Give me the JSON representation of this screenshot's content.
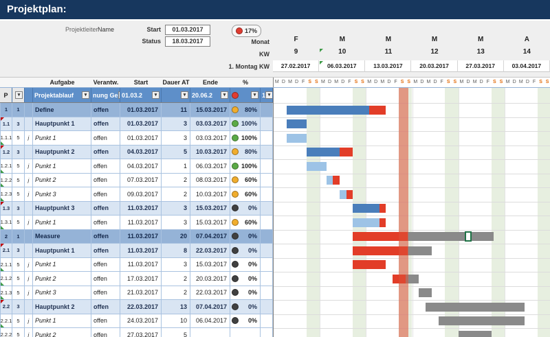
{
  "title": "Projektplan:",
  "header": {
    "projektleiter_label": "Projektleiter",
    "projektleiter_value": "Name",
    "start_label": "Start",
    "start_value": "01.03.2017",
    "status_label": "Status",
    "status_value": "18.03.2017",
    "progress_pct": "17%",
    "monat_label": "Monat",
    "kw_label": "KW",
    "montag_label": "1. Montag KW"
  },
  "timeline": {
    "months": [
      "F",
      "M",
      "M",
      "M",
      "M",
      "A"
    ],
    "kws": [
      "9",
      "10",
      "11",
      "12",
      "13",
      "14"
    ],
    "week_dates": [
      "27.02.2017",
      "06.03.2017",
      "13.03.2017",
      "20.03.2017",
      "27.03.2017",
      "03.04.2017"
    ],
    "day_letters": [
      "M",
      "D",
      "M",
      "D",
      "F",
      "S",
      "S"
    ],
    "today_offset_days": 19,
    "today_span_days": 1.4
  },
  "table": {
    "header_cells": [
      "",
      "",
      "",
      "Aufgabe",
      "Verantw.",
      "Start",
      "Dauer AT",
      "Ende",
      "%",
      ""
    ],
    "filter": {
      "p": "P",
      "aufgabe": "Projektablauf",
      "verantw": "nung Ge",
      "start": "01.03.2",
      "ende": "20.06.2",
      "last": "1"
    },
    "rows": [
      {
        "p": "1",
        "num": "1",
        "j": "",
        "level": 1,
        "aufgabe": "Define",
        "verantw": "offen",
        "start": "01.03.2017",
        "dauer": "11",
        "ende": "15.03.2017",
        "pct": "80%",
        "dot": "yellow",
        "bar": {
          "s": 2,
          "segs": [
            [
              "blue",
              12.5
            ],
            [
              "red",
              2.5
            ]
          ]
        }
      },
      {
        "p": "1.1",
        "num": "3",
        "j": "",
        "level": 2,
        "aufgabe": "Hauptpunkt 1",
        "verantw": "offen",
        "start": "01.03.2017",
        "dauer": "3",
        "ende": "03.03.2017",
        "pct": "100%",
        "dot": "green",
        "bar": {
          "s": 2,
          "segs": [
            [
              "blue",
              3
            ]
          ]
        }
      },
      {
        "p": "1.1.1",
        "num": "5",
        "j": "j",
        "level": 3,
        "aufgabe": "Punkt 1",
        "verantw": "offen",
        "start": "01.03.2017",
        "dauer": "3",
        "ende": "03.03.2017",
        "pct": "100%",
        "dot": "green",
        "bar": {
          "s": 2,
          "segs": [
            [
              "lightblue",
              3
            ]
          ]
        }
      },
      {
        "p": "1.2",
        "num": "3",
        "j": "",
        "level": 2,
        "aufgabe": "Hauptpunkt 2",
        "verantw": "offen",
        "start": "04.03.2017",
        "dauer": "5",
        "ende": "10.03.2017",
        "pct": "80%",
        "dot": "yellow",
        "bar": {
          "s": 5,
          "segs": [
            [
              "blue",
              5
            ],
            [
              "red",
              2
            ]
          ]
        }
      },
      {
        "p": "1.2.1",
        "num": "5",
        "j": "j",
        "level": 3,
        "aufgabe": "Punkt 1",
        "verantw": "offen",
        "start": "04.03.2017",
        "dauer": "1",
        "ende": "06.03.2017",
        "pct": "100%",
        "dot": "green",
        "bar": {
          "s": 5,
          "segs": [
            [
              "lightblue",
              3
            ]
          ]
        }
      },
      {
        "p": "1.2.2",
        "num": "5",
        "j": "j",
        "level": 3,
        "aufgabe": "Punkt 2",
        "verantw": "offen",
        "start": "07.03.2017",
        "dauer": "2",
        "ende": "08.03.2017",
        "pct": "60%",
        "dot": "yellow",
        "bar": {
          "s": 8,
          "segs": [
            [
              "lightblue",
              1
            ],
            [
              "red",
              1
            ]
          ]
        }
      },
      {
        "p": "1.2.3",
        "num": "5",
        "j": "j",
        "level": 3,
        "aufgabe": "Punkt 3",
        "verantw": "offen",
        "start": "09.03.2017",
        "dauer": "2",
        "ende": "10.03.2017",
        "pct": "60%",
        "dot": "yellow",
        "bar": {
          "s": 10,
          "segs": [
            [
              "lightblue",
              1
            ],
            [
              "red",
              1
            ]
          ]
        }
      },
      {
        "p": "1.3",
        "num": "3",
        "j": "",
        "level": 2,
        "aufgabe": "Hauptpunkt 3",
        "verantw": "offen",
        "start": "11.03.2017",
        "dauer": "3",
        "ende": "15.03.2017",
        "pct": "0%",
        "dot": "black",
        "bar": {
          "s": 12,
          "segs": [
            [
              "blue",
              4
            ],
            [
              "red",
              1
            ]
          ]
        }
      },
      {
        "p": "1.3.1",
        "num": "5",
        "j": "j",
        "level": 3,
        "aufgabe": "Punkt 1",
        "verantw": "offen",
        "start": "11.03.2017",
        "dauer": "3",
        "ende": "15.03.2017",
        "pct": "60%",
        "dot": "yellow",
        "bar": {
          "s": 12,
          "segs": [
            [
              "lightblue",
              4
            ],
            [
              "red",
              1
            ]
          ]
        }
      },
      {
        "p": "2",
        "num": "1",
        "j": "",
        "level": 1,
        "aufgabe": "Measure",
        "verantw": "offen",
        "start": "11.03.2017",
        "dauer": "20",
        "ende": "07.04.2017",
        "pct": "0%",
        "dot": "black",
        "bar": {
          "s": 12,
          "segs": [
            [
              "red",
              8.3
            ],
            [
              "gray",
              13
            ]
          ]
        }
      },
      {
        "p": "2.1",
        "num": "3",
        "j": "",
        "level": 2,
        "aufgabe": "Hauptpunkt 1",
        "verantw": "offen",
        "start": "11.03.2017",
        "dauer": "8",
        "ende": "22.03.2017",
        "pct": "0%",
        "dot": "black",
        "bar": {
          "s": 12,
          "segs": [
            [
              "red",
              8.3
            ],
            [
              "gray",
              3.7
            ]
          ]
        }
      },
      {
        "p": "2.1.1",
        "num": "5",
        "j": "j",
        "level": 3,
        "aufgabe": "Punkt 1",
        "verantw": "offen",
        "start": "11.03.2017",
        "dauer": "3",
        "ende": "15.03.2017",
        "pct": "0%",
        "dot": "black",
        "bar": {
          "s": 12,
          "segs": [
            [
              "red",
              5
            ]
          ]
        }
      },
      {
        "p": "2.1.2",
        "num": "5",
        "j": "j",
        "level": 3,
        "aufgabe": "Punkt 2",
        "verantw": "offen",
        "start": "17.03.2017",
        "dauer": "2",
        "ende": "20.03.2017",
        "pct": "0%",
        "dot": "black",
        "bar": {
          "s": 18,
          "segs": [
            [
              "red",
              2
            ],
            [
              "gray",
              2
            ]
          ]
        }
      },
      {
        "p": "2.1.3",
        "num": "5",
        "j": "j",
        "level": 3,
        "aufgabe": "Punkt 3",
        "verantw": "offen",
        "start": "21.03.2017",
        "dauer": "2",
        "ende": "22.03.2017",
        "pct": "0%",
        "dot": "black",
        "bar": {
          "s": 22,
          "segs": [
            [
              "gray",
              2
            ]
          ]
        }
      },
      {
        "p": "2.2",
        "num": "3",
        "j": "",
        "level": 2,
        "aufgabe": "Hauptpunkt 2",
        "verantw": "offen",
        "start": "22.03.2017",
        "dauer": "13",
        "ende": "07.04.2017",
        "pct": "0%",
        "dot": "black",
        "bar": {
          "s": 23,
          "segs": [
            [
              "gray",
              15
            ]
          ]
        }
      },
      {
        "p": "2.2.1",
        "num": "5",
        "j": "j",
        "level": 3,
        "aufgabe": "Punkt 1",
        "verantw": "offen",
        "start": "24.03.2017",
        "dauer": "10",
        "ende": "06.04.2017",
        "pct": "0%",
        "dot": "black",
        "bar": {
          "s": 25,
          "segs": [
            [
              "gray",
              13
            ]
          ]
        }
      },
      {
        "p": "2.2.2",
        "num": "5",
        "j": "j",
        "level": 3,
        "aufgabe": "Punkt 2",
        "verantw": "offen",
        "start": "27.03.2017",
        "dauer": "5",
        "ende": "",
        "pct": "",
        "dot": "",
        "bar": {
          "s": 28,
          "segs": [
            [
              "gray",
              5
            ]
          ]
        }
      }
    ]
  },
  "colors": {
    "title_bg": "#17375E",
    "bar_blue": "#4A7EBB",
    "bar_lightblue": "#9DC3E6",
    "bar_red": "#E23D28",
    "bar_gray": "#8A8A8A",
    "today_band": "rgba(220,80,54,0.55)",
    "dot_red": "#E03C31",
    "dot_yellow": "#F0AD2E",
    "dot_green": "#5BAA46",
    "dot_black": "#404040",
    "weekend_band": "#E7EFE0",
    "level1_bg": "#95B3D7",
    "level2_bg": "#D9E5F3",
    "filter_bg": "#5E8FC9"
  }
}
